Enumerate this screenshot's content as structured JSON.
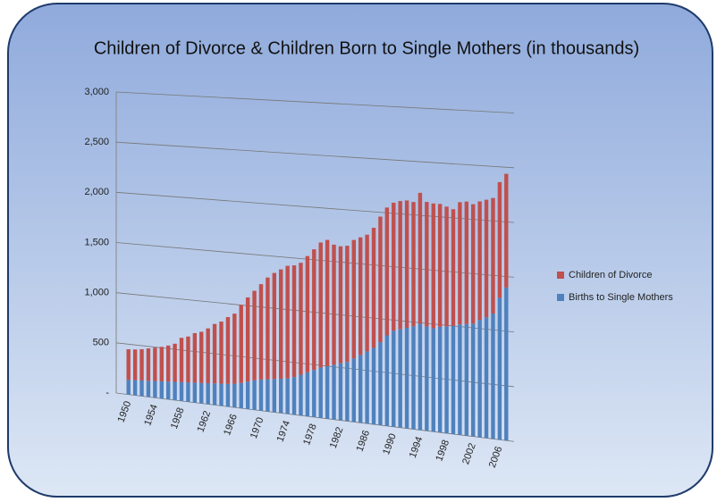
{
  "chart_data": {
    "type": "stacked_bar",
    "title": "Children of Divorce & Children Born to Single Mothers (in thousands)",
    "categories": [
      "1950",
      null,
      null,
      null,
      "1954",
      null,
      null,
      null,
      "1958",
      null,
      null,
      null,
      "1962",
      null,
      null,
      null,
      "1966",
      null,
      null,
      null,
      "1970",
      null,
      null,
      null,
      "1974",
      null,
      null,
      null,
      "1978",
      null,
      null,
      null,
      "1982",
      null,
      null,
      null,
      "1986",
      null,
      null,
      null,
      "1990",
      null,
      null,
      null,
      "1994",
      null,
      null,
      null,
      "1998",
      null,
      null,
      null,
      "2002",
      null,
      null,
      null,
      "2006",
      null
    ],
    "series": [
      {
        "name": "Births to Single Mothers",
        "color": "#4f81bd",
        "values": [
          145,
          150,
          155,
          160,
          165,
          170,
          175,
          180,
          185,
          190,
          195,
          200,
          205,
          210,
          215,
          220,
          230,
          245,
          265,
          285,
          300,
          310,
          320,
          330,
          340,
          360,
          390,
          420,
          450,
          480,
          500,
          520,
          540,
          560,
          600,
          640,
          680,
          720,
          780,
          850,
          900,
          920,
          940,
          960,
          990,
          970,
          960,
          980,
          990,
          1000,
          1020,
          1030,
          1040,
          1080,
          1110,
          1150,
          1300,
          1400
        ]
      },
      {
        "name": "Children of Divorce",
        "color": "#c0504d",
        "values": [
          305,
          305,
          310,
          320,
          330,
          340,
          355,
          375,
          435,
          450,
          485,
          500,
          535,
          580,
          605,
          650,
          680,
          755,
          815,
          865,
          920,
          980,
          1020,
          1050,
          1080,
          1070,
          1070,
          1110,
          1150,
          1190,
          1200,
          1140,
          1110,
          1100,
          1120,
          1110,
          1100,
          1130,
          1180,
          1200,
          1200,
          1200,
          1190,
          1160,
          1220,
          1160,
          1160,
          1140,
          1110,
          1080,
          1130,
          1130,
          1100,
          1090,
          1080,
          1060,
          1060,
          1040
        ]
      }
    ],
    "ylim": [
      0,
      3000
    ],
    "yticks": [
      {
        "value": 0,
        "label": "-"
      },
      500,
      {
        "value": 1000,
        "label": "1,000"
      },
      {
        "value": 1500,
        "label": "1,500"
      },
      {
        "value": 2000,
        "label": "2,000"
      },
      {
        "value": 2500,
        "label": "2,500"
      },
      {
        "value": 3000,
        "label": "3,000"
      }
    ],
    "grid": true,
    "legend": "right"
  }
}
